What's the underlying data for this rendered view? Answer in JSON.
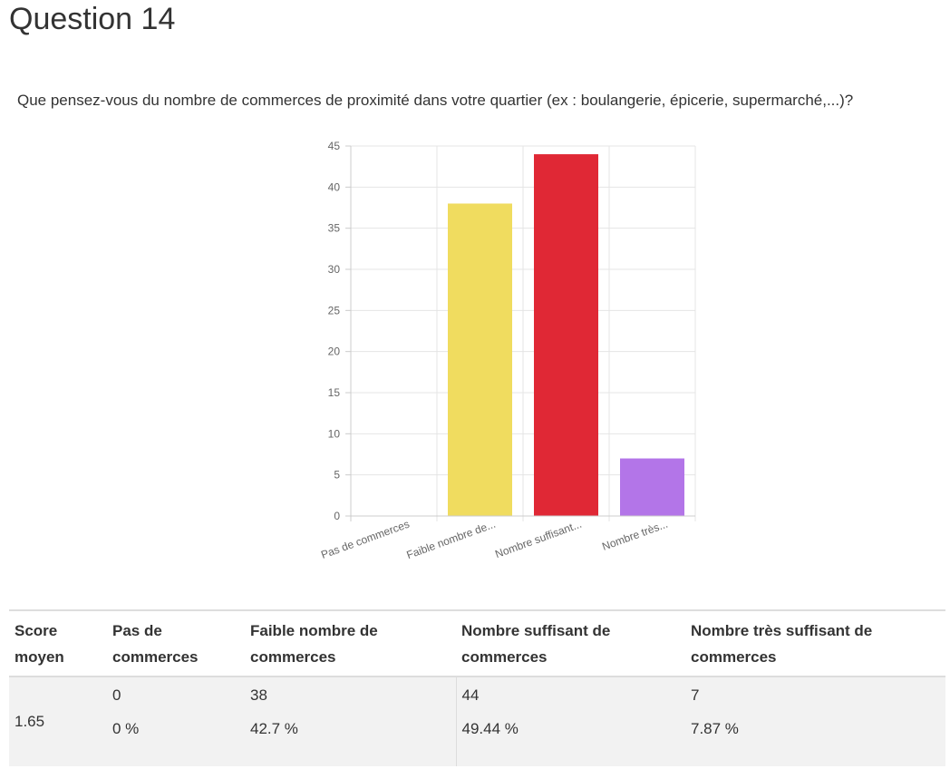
{
  "page": {
    "title": "Question 14",
    "question": "Que pensez-vous du nombre de commerces de proximité dans votre quartier (ex : boulangerie, épicerie, supermarché,...)?"
  },
  "chart_data": {
    "type": "bar",
    "categories": [
      "Pas de commerces",
      "Faible nombre de...",
      "Nombre suffisant...",
      "Nombre très..."
    ],
    "values": [
      0,
      38,
      44,
      7
    ],
    "colors": [
      "#e6e6e6",
      "#f0dc5f",
      "#e02835",
      "#b375e8"
    ],
    "ylim": [
      0,
      45
    ],
    "yticks": [
      0,
      5,
      10,
      15,
      20,
      25,
      30,
      35,
      40,
      45
    ],
    "grid": true,
    "title": "",
    "xlabel": "",
    "ylabel": ""
  },
  "table": {
    "headers": {
      "score": "Score moyen",
      "c1": "Pas de commerces",
      "c2": "Faible nombre de commerces",
      "c3": "Nombre suffisant de commerces",
      "c4": "Nombre très suffisant de commerces"
    },
    "score": "1.65",
    "counts": [
      "0",
      "38",
      "44",
      "7"
    ],
    "percents": [
      "0 %",
      "42.7 %",
      "49.44 %",
      "7.87 %"
    ]
  }
}
